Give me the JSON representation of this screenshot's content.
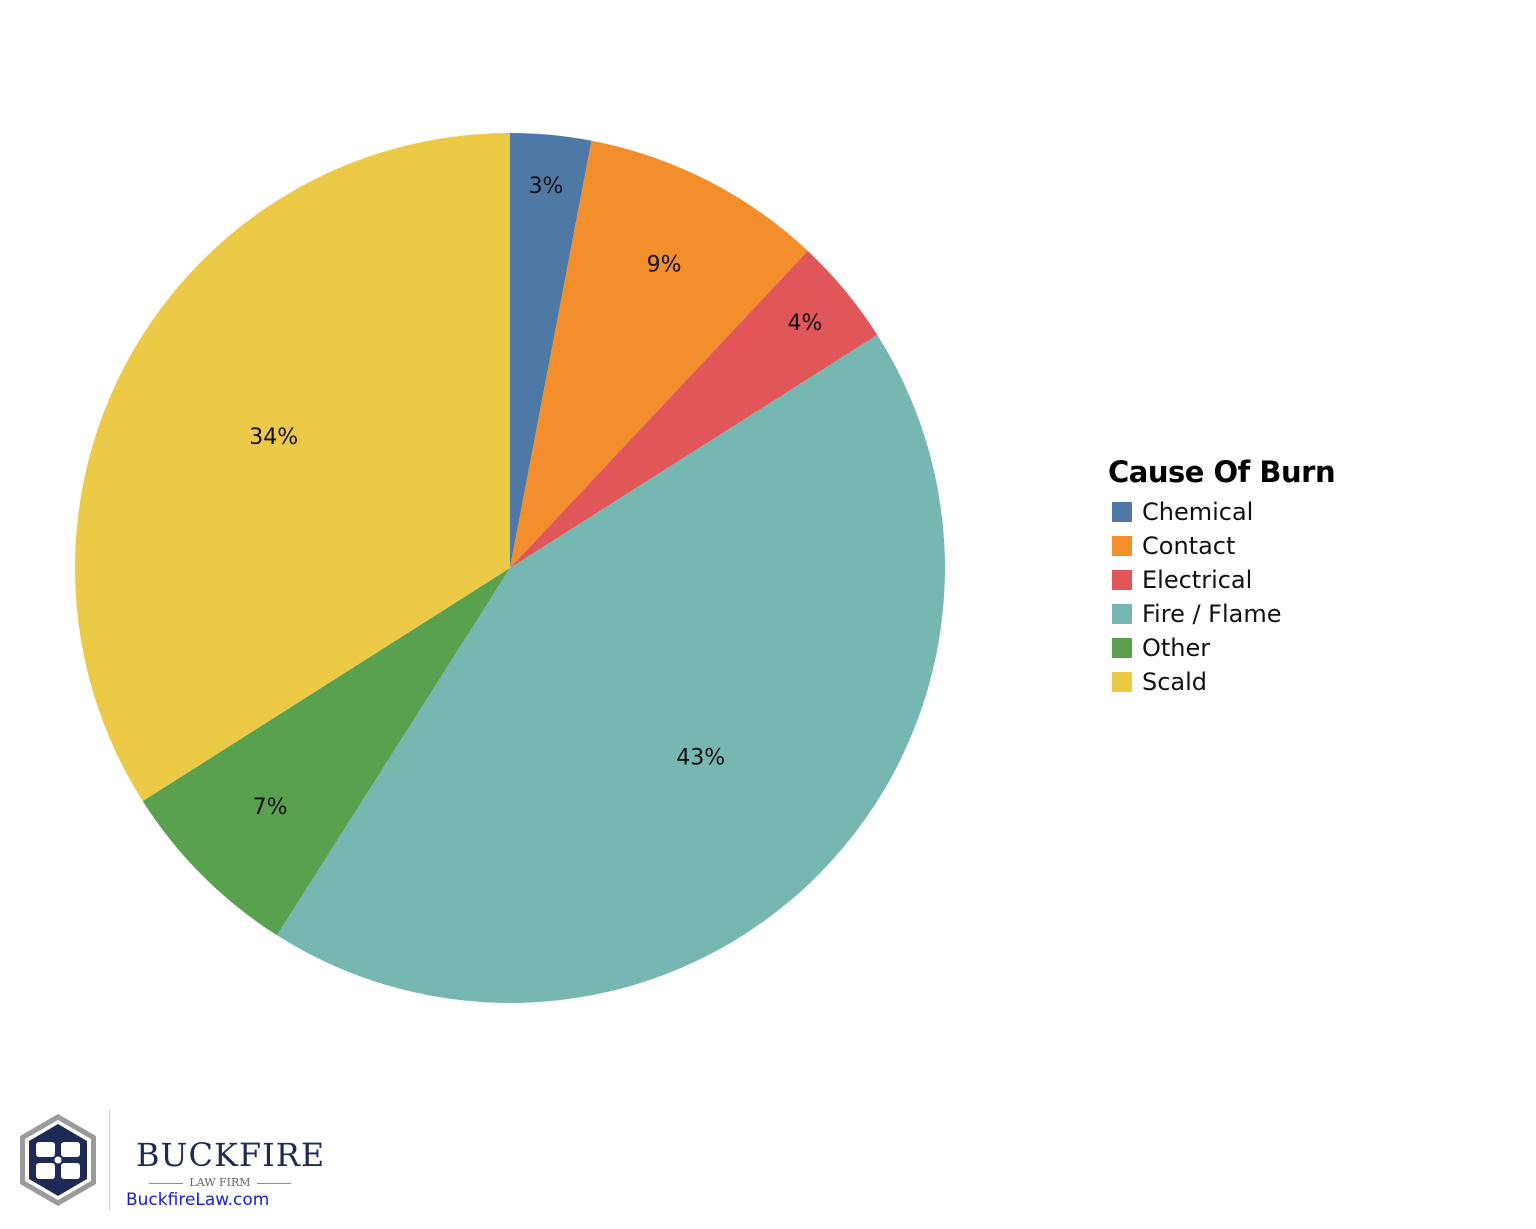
{
  "chart_data": {
    "type": "pie",
    "title": "",
    "legend_title": "Cause Of Burn",
    "legend_position": "right",
    "start_angle_deg": 0,
    "direction": "clockwise",
    "categories": [
      "Chemical",
      "Contact",
      "Electrical",
      "Fire / Flame",
      "Other",
      "Scald"
    ],
    "values": [
      3,
      9,
      4,
      43,
      7,
      34
    ],
    "labels": [
      "3%",
      "9%",
      "4%",
      "43%",
      "7%",
      "34%"
    ],
    "colors": [
      "#4e79a7",
      "#f28e2b",
      "#e15759",
      "#76b7b2",
      "#59a14f",
      "#edc948"
    ]
  },
  "legend": {
    "title": "Cause Of Burn",
    "items": [
      {
        "label": "Chemical",
        "color": "#4e79a7"
      },
      {
        "label": "Contact",
        "color": "#f28e2b"
      },
      {
        "label": "Electrical",
        "color": "#e15759"
      },
      {
        "label": "Fire / Flame",
        "color": "#76b7b2"
      },
      {
        "label": "Other",
        "color": "#59a14f"
      },
      {
        "label": "Scald",
        "color": "#edc948"
      }
    ]
  },
  "logo": {
    "name": "BUCKFIRE",
    "subtitle": "LAW FIRM",
    "url": "BuckfireLaw.com",
    "primary_color": "#1c2a55",
    "frame_color": "#9a9a9a"
  }
}
